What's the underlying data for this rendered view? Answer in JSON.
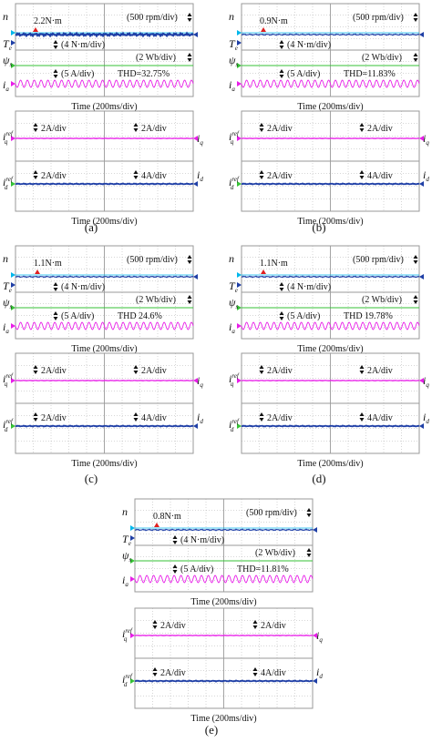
{
  "figure": {
    "panels": [
      {
        "id": "a",
        "caption": "(a)",
        "top": {
          "symbols": {
            "n": "n",
            "te": "T",
            "te_sub": "e",
            "psi": "ψ",
            "psi_sub": "s",
            "ia": "i",
            "ia_sub": "a"
          },
          "torque_label": "2.2N·m",
          "speed_scale": "(500 rpm/div)",
          "torque_scale": "(4 N·m/div)",
          "flux_scale": "(2 Wb/div)",
          "current_scale": "(5 A/div)",
          "thd": "THD=32.75%",
          "xlabel": "Time (200ms/div)"
        },
        "bottom": {
          "iq_symbol": "i",
          "iq_sub": "q",
          "iq_sup": "ref",
          "id_symbol": "i",
          "id_sub": "d",
          "id_sup": "ref",
          "iq_right": "i",
          "iq_right_sub": "q",
          "id_right": "i",
          "id_right_sub": "d",
          "iq_scale_left": "2A/div",
          "iq_scale_right": "2A/div",
          "id_scale_left": "2A/div",
          "id_scale_right": "4A/div",
          "xlabel": "Time (200ms/div)"
        }
      },
      {
        "id": "b",
        "caption": "(b)",
        "top": {
          "symbols": {
            "n": "n",
            "te": "T",
            "te_sub": "e",
            "psi": "ψ",
            "psi_sub": "s",
            "ia": "i",
            "ia_sub": "a"
          },
          "torque_label": "0.9N·m",
          "speed_scale": "(500 rpm/div)",
          "torque_scale": "(4 N·m/div)",
          "flux_scale": "(2 Wb/div)",
          "current_scale": "(5 A/div)",
          "thd": "THD=11.83%",
          "xlabel": "Time (200ms/div)"
        },
        "bottom": {
          "iq_symbol": "i",
          "iq_sub": "q",
          "iq_sup": "ref",
          "id_symbol": "i",
          "id_sub": "d",
          "id_sup": "ref",
          "iq_right": "i",
          "iq_right_sub": "q",
          "id_right": "i",
          "id_right_sub": "d",
          "iq_scale_left": "2A/div",
          "iq_scale_right": "2A/div",
          "id_scale_left": "2A/div",
          "id_scale_right": "4A/div",
          "xlabel": "Time (200ms/div)"
        }
      },
      {
        "id": "c",
        "caption": "(c)",
        "top": {
          "symbols": {
            "n": "n",
            "te": "T",
            "te_sub": "e",
            "psi": "ψ",
            "psi_sub": "s",
            "ia": "i",
            "ia_sub": "a"
          },
          "torque_label": "1.1N·m",
          "speed_scale": "(500 rpm/div)",
          "torque_scale": "(4 N·m/div)",
          "flux_scale": "(2 Wb/div)",
          "current_scale": "(5 A/div)",
          "thd": "THD  24.6%",
          "xlabel": "Time (200ms/div)"
        },
        "bottom": {
          "iq_symbol": "i",
          "iq_sub": "q",
          "iq_sup": "ref",
          "id_symbol": "i",
          "id_sub": "d",
          "id_sup": "ref",
          "iq_right": "i",
          "iq_right_sub": "q",
          "id_right": "i",
          "id_right_sub": "d",
          "iq_scale_left": "2A/div",
          "iq_scale_right": "2A/div",
          "id_scale_left": "2A/div",
          "id_scale_right": "4A/div",
          "xlabel": "Time (200ms/div)"
        }
      },
      {
        "id": "d",
        "caption": "(d)",
        "top": {
          "symbols": {
            "n": "n",
            "te": "T",
            "te_sub": "e",
            "psi": "ψ",
            "psi_sub": "s",
            "ia": "i",
            "ia_sub": "a"
          },
          "torque_label": "1.1N·m",
          "speed_scale": "(500 rpm/div)",
          "torque_scale": "(4 N·m/div)",
          "flux_scale": "(2 Wb/div)",
          "current_scale": "(5 A/div)",
          "thd": "THD  19.78%",
          "xlabel": "Time (200ms/div)"
        },
        "bottom": {
          "iq_symbol": "i",
          "iq_sub": "q",
          "iq_sup": "ref",
          "id_symbol": "i",
          "id_sub": "d",
          "id_sup": "ref",
          "iq_right": "i",
          "iq_right_sub": "q",
          "id_right": "i",
          "id_right_sub": "d",
          "iq_scale_left": "2A/div",
          "iq_scale_right": "2A/div",
          "id_scale_left": "2A/div",
          "id_scale_right": "4A/div",
          "xlabel": "Time (200ms/div)"
        }
      },
      {
        "id": "e",
        "caption": "(e)",
        "top": {
          "symbols": {
            "n": "n",
            "te": "T",
            "te_sub": "e",
            "psi": "ψ",
            "psi_sub": "s",
            "ia": "i",
            "ia_sub": "a"
          },
          "torque_label": "0.8N·m",
          "speed_scale": "(500 rpm/div)",
          "torque_scale": "(4 N·m/div)",
          "flux_scale": "(2 Wb/div)",
          "current_scale": "(5 A/div)",
          "thd": "THD=11.81%",
          "xlabel": "Time (200ms/div)"
        },
        "bottom": {
          "iq_symbol": "i",
          "iq_sub": "q",
          "iq_sup": "ref",
          "id_symbol": "i",
          "id_sub": "d",
          "id_sup": "ref",
          "iq_right": "i",
          "iq_right_sub": "q",
          "id_right": "i",
          "id_right_sub": "d",
          "iq_scale_left": "2A/div",
          "iq_scale_right": "2A/div",
          "id_scale_left": "2A/div",
          "id_scale_right": "4A/div",
          "xlabel": "Time (200ms/div)"
        }
      }
    ],
    "colors": {
      "grid": "#9a9a9a",
      "speed": "#00b7eb",
      "torque": "#1f3fa6",
      "flux": "#35c235",
      "current": "#e81ee8",
      "iq": "#e81ee8",
      "id": "#1f3fa6",
      "marker_red": "#e02020"
    },
    "icons": [
      "ground-level-marker-icon",
      "division-arrow-icon"
    ]
  }
}
